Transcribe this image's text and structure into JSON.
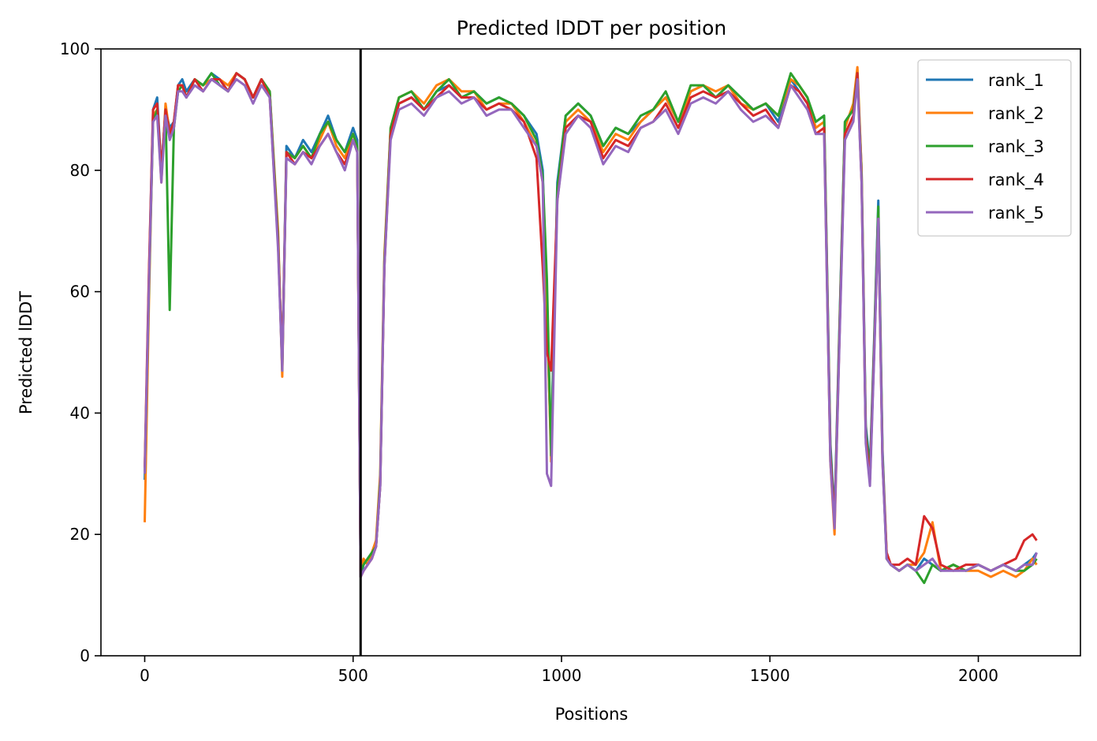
{
  "chart_data": {
    "type": "line",
    "title": "Predicted lDDT per position",
    "xlabel": "Positions",
    "ylabel": "Predicted lDDT",
    "xlim": [
      -105,
      2245
    ],
    "ylim": [
      0,
      100
    ],
    "xticks": [
      0,
      500,
      1000,
      1500,
      2000
    ],
    "yticks": [
      0,
      20,
      40,
      60,
      80,
      100
    ],
    "grid": false,
    "legend_position": "top-right",
    "vertical_line": {
      "x": 518,
      "color": "#000000"
    },
    "x": [
      0,
      10,
      20,
      30,
      40,
      50,
      60,
      70,
      80,
      90,
      100,
      120,
      140,
      160,
      180,
      200,
      220,
      240,
      260,
      280,
      300,
      320,
      330,
      340,
      360,
      380,
      400,
      420,
      440,
      460,
      480,
      500,
      510,
      518,
      525,
      535,
      545,
      555,
      565,
      575,
      590,
      610,
      640,
      670,
      700,
      730,
      760,
      790,
      820,
      850,
      880,
      910,
      940,
      955,
      965,
      975,
      990,
      1010,
      1040,
      1070,
      1100,
      1130,
      1160,
      1190,
      1220,
      1250,
      1280,
      1310,
      1340,
      1370,
      1400,
      1430,
      1460,
      1490,
      1520,
      1550,
      1570,
      1590,
      1610,
      1630,
      1645,
      1655,
      1665,
      1680,
      1700,
      1710,
      1720,
      1730,
      1740,
      1750,
      1760,
      1770,
      1780,
      1790,
      1810,
      1830,
      1850,
      1870,
      1890,
      1910,
      1940,
      1970,
      2000,
      2030,
      2060,
      2090,
      2110,
      2130,
      2140
    ],
    "series": [
      {
        "name": "rank_1",
        "color": "#1f77b4",
        "values": [
          29,
          62,
          90,
          92,
          80,
          90,
          87,
          88,
          94,
          95,
          93,
          95,
          94,
          96,
          95,
          93,
          96,
          95,
          92,
          95,
          93,
          68,
          48,
          84,
          82,
          85,
          83,
          86,
          89,
          85,
          83,
          87,
          85,
          13,
          15,
          16,
          17,
          18,
          28,
          65,
          86,
          91,
          92,
          90,
          93,
          94,
          92,
          93,
          91,
          92,
          91,
          89,
          86,
          80,
          55,
          34,
          78,
          89,
          91,
          89,
          84,
          87,
          86,
          88,
          90,
          92,
          88,
          93,
          94,
          92,
          94,
          92,
          90,
          91,
          88,
          95,
          93,
          91,
          88,
          89,
          35,
          23,
          50,
          88,
          90,
          96,
          80,
          38,
          31,
          52,
          75,
          34,
          17,
          15,
          14,
          15,
          14,
          16,
          15,
          14,
          15,
          14,
          15,
          14,
          15,
          14,
          15,
          16,
          17
        ]
      },
      {
        "name": "rank_2",
        "color": "#ff7f0e",
        "values": [
          22,
          58,
          89,
          90,
          78,
          91,
          86,
          87,
          94,
          94,
          92,
          95,
          94,
          95,
          95,
          94,
          96,
          95,
          92,
          95,
          93,
          70,
          46,
          83,
          82,
          84,
          82,
          85,
          88,
          84,
          82,
          86,
          84,
          14,
          16,
          15,
          17,
          19,
          30,
          66,
          87,
          92,
          93,
          91,
          94,
          95,
          93,
          93,
          90,
          91,
          91,
          88,
          84,
          78,
          58,
          32,
          76,
          88,
          90,
          88,
          83,
          86,
          85,
          88,
          90,
          92,
          88,
          93,
          94,
          93,
          94,
          91,
          90,
          91,
          89,
          95,
          94,
          92,
          87,
          88,
          32,
          20,
          48,
          87,
          91,
          97,
          80,
          36,
          29,
          50,
          73,
          33,
          17,
          15,
          14,
          15,
          15,
          17,
          22,
          14,
          15,
          14,
          14,
          13,
          14,
          13,
          14,
          16,
          15
        ]
      },
      {
        "name": "rank_3",
        "color": "#2ca02c",
        "values": [
          30,
          60,
          88,
          90,
          79,
          90,
          57,
          87,
          93,
          94,
          92,
          95,
          94,
          96,
          94,
          93,
          96,
          95,
          92,
          95,
          93,
          69,
          47,
          83,
          82,
          84,
          82,
          86,
          88,
          85,
          83,
          86,
          84,
          14,
          15,
          16,
          17,
          18,
          29,
          65,
          87,
          92,
          93,
          90,
          93,
          95,
          92,
          93,
          91,
          92,
          91,
          89,
          85,
          79,
          62,
          33,
          77,
          89,
          91,
          89,
          84,
          87,
          86,
          89,
          90,
          93,
          88,
          94,
          94,
          92,
          94,
          92,
          90,
          91,
          89,
          96,
          94,
          92,
          88,
          89,
          34,
          22,
          49,
          88,
          90,
          96,
          79,
          37,
          30,
          51,
          74,
          33,
          16,
          15,
          14,
          15,
          14,
          12,
          15,
          14,
          15,
          14,
          15,
          14,
          15,
          14,
          14,
          15,
          16
        ]
      },
      {
        "name": "rank_4",
        "color": "#d62728",
        "values": [
          31,
          63,
          90,
          91,
          80,
          90,
          86,
          88,
          94,
          94,
          92,
          95,
          93,
          95,
          95,
          93,
          96,
          95,
          92,
          95,
          92,
          68,
          48,
          83,
          81,
          83,
          82,
          84,
          86,
          83,
          81,
          85,
          83,
          13,
          14,
          15,
          16,
          18,
          28,
          64,
          86,
          91,
          92,
          90,
          92,
          94,
          92,
          92,
          90,
          91,
          90,
          88,
          82,
          64,
          50,
          47,
          75,
          87,
          89,
          88,
          82,
          85,
          84,
          87,
          88,
          91,
          87,
          92,
          93,
          92,
          93,
          91,
          89,
          90,
          87,
          94,
          93,
          91,
          86,
          87,
          33,
          22,
          48,
          86,
          89,
          96,
          78,
          36,
          29,
          50,
          72,
          32,
          17,
          15,
          15,
          16,
          15,
          23,
          21,
          15,
          14,
          15,
          15,
          14,
          15,
          16,
          19,
          20,
          19
        ]
      },
      {
        "name": "rank_5",
        "color": "#9467bd",
        "values": [
          30,
          61,
          88,
          89,
          78,
          89,
          85,
          87,
          93,
          93,
          92,
          94,
          93,
          95,
          94,
          93,
          95,
          94,
          91,
          94,
          92,
          67,
          47,
          82,
          81,
          83,
          81,
          84,
          86,
          83,
          80,
          85,
          83,
          13,
          14,
          15,
          16,
          18,
          28,
          64,
          85,
          90,
          91,
          89,
          92,
          93,
          91,
          92,
          89,
          90,
          90,
          87,
          84,
          78,
          30,
          28,
          75,
          86,
          89,
          87,
          81,
          84,
          83,
          87,
          88,
          90,
          86,
          91,
          92,
          91,
          93,
          90,
          88,
          89,
          87,
          94,
          92,
          90,
          86,
          86,
          32,
          21,
          47,
          85,
          88,
          95,
          78,
          35,
          28,
          49,
          72,
          32,
          16,
          15,
          14,
          15,
          14,
          15,
          16,
          14,
          14,
          14,
          15,
          14,
          15,
          14,
          15,
          15,
          17
        ]
      }
    ]
  }
}
